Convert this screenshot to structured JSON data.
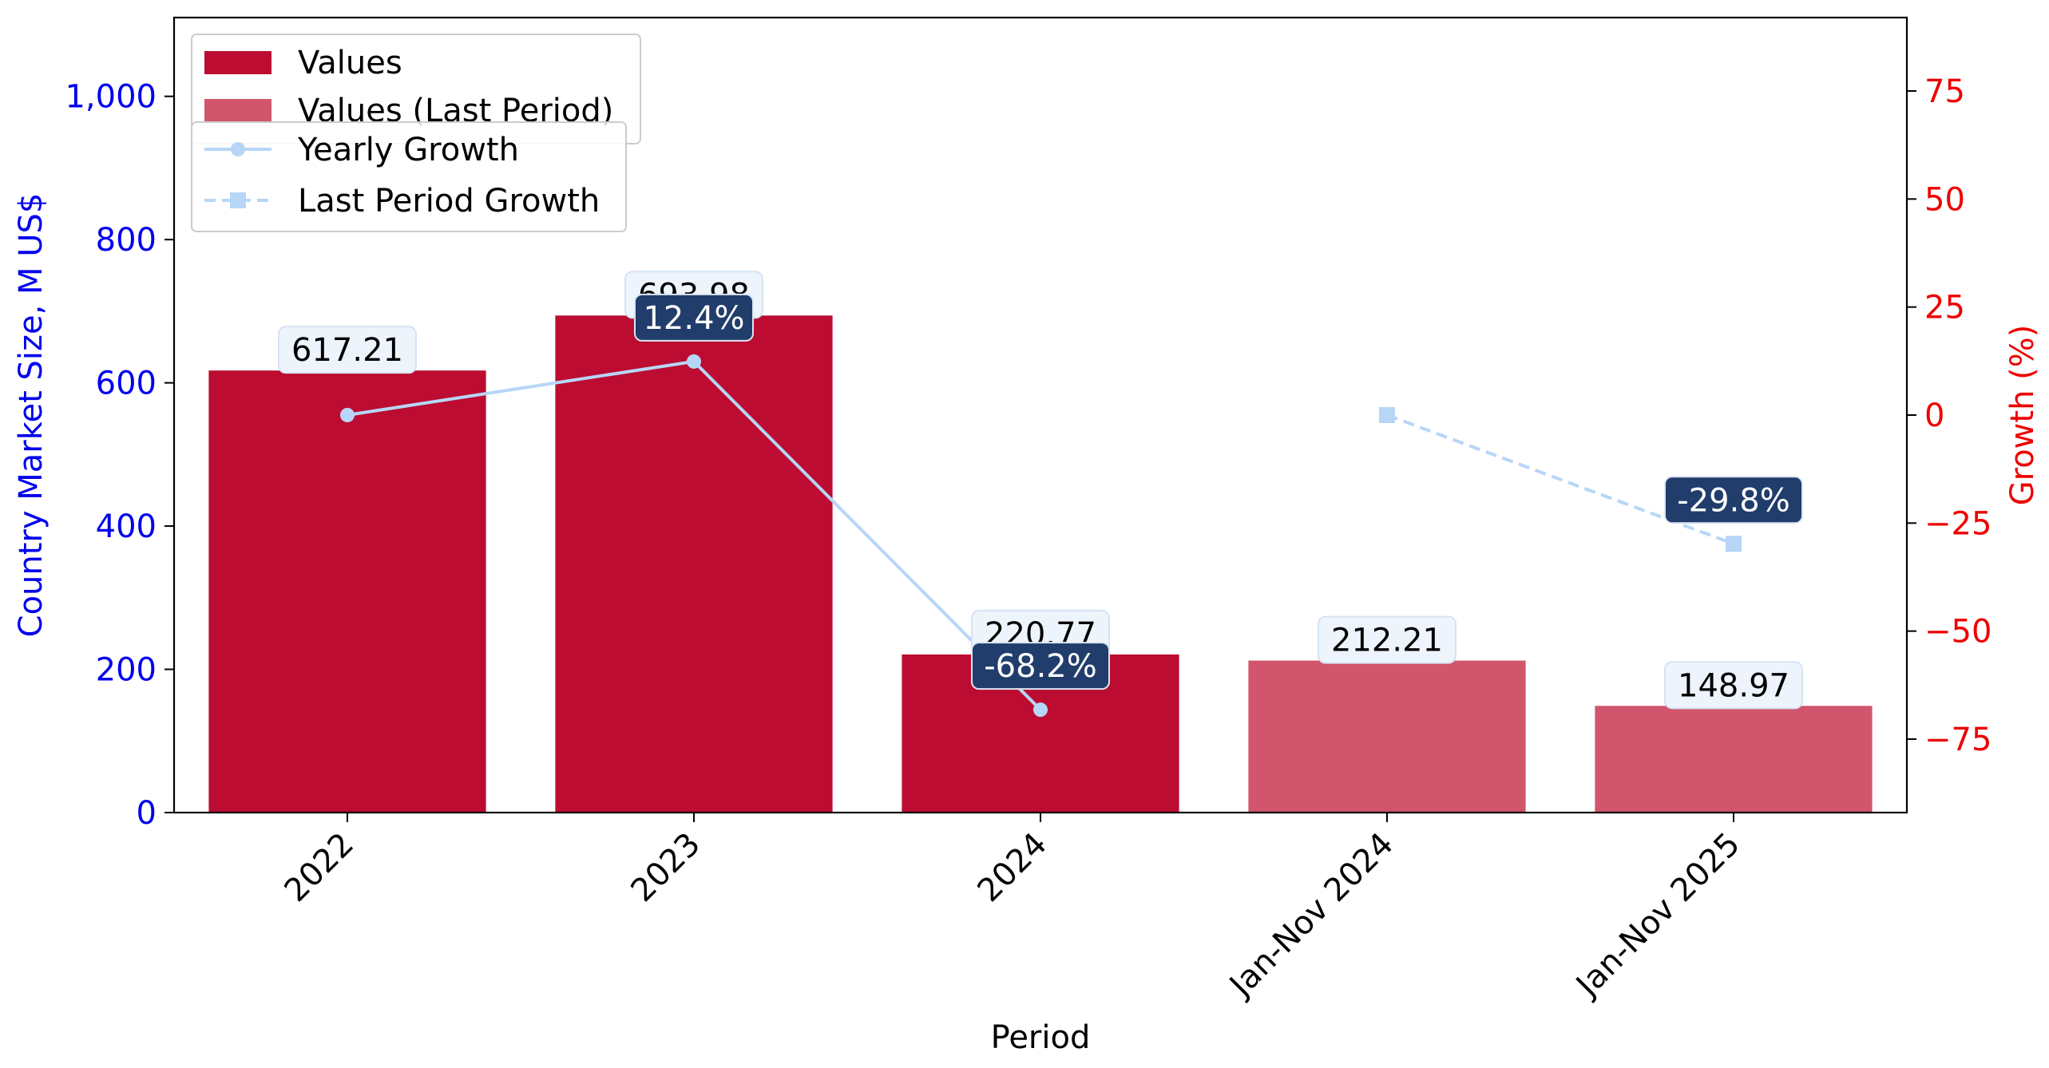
{
  "chart_data": {
    "type": "bar",
    "xlabel": "Period",
    "ylabel_left": "Country Market Size, M US$",
    "ylabel_right": "Growth (%)",
    "categories": [
      "2022",
      "2023",
      "2024",
      "Jan-Nov 2024",
      "Jan-Nov 2025"
    ],
    "ylim_left": [
      0,
      1110
    ],
    "ylim_right": [
      -92,
      92
    ],
    "yticks_left": [
      0,
      200,
      400,
      600,
      800,
      1000
    ],
    "ytick_labels_left": [
      "0",
      "200",
      "400",
      "600",
      "800",
      "1,000"
    ],
    "yticks_right": [
      -75,
      -50,
      -25,
      0,
      25,
      50,
      75
    ],
    "ytick_labels_right": [
      "−75",
      "−50",
      "−25",
      "0",
      "25",
      "50",
      "75"
    ],
    "grid": false,
    "legend_position": "top-left",
    "bars": [
      {
        "category": "2022",
        "value": 617.21,
        "label": "617.21",
        "series": "Values"
      },
      {
        "category": "2023",
        "value": 693.98,
        "label": "693.98",
        "series": "Values"
      },
      {
        "category": "2024",
        "value": 220.77,
        "label": "220.77",
        "series": "Values"
      },
      {
        "category": "Jan-Nov 2024",
        "value": 212.21,
        "label": "212.21",
        "series": "Values (Last Period)"
      },
      {
        "category": "Jan-Nov 2025",
        "value": 148.97,
        "label": "148.97",
        "series": "Values (Last Period)"
      }
    ],
    "lines": [
      {
        "name": "Yearly Growth",
        "style": "solid",
        "marker": "circle",
        "points": [
          {
            "category": "2022",
            "value": 0,
            "label": ""
          },
          {
            "category": "2023",
            "value": 12.4,
            "label": "12.4%"
          },
          {
            "category": "2024",
            "value": -68.2,
            "label": "-68.2%"
          }
        ]
      },
      {
        "name": "Last Period Growth",
        "style": "dashed",
        "marker": "square",
        "points": [
          {
            "category": "Jan-Nov 2024",
            "value": 0,
            "label": ""
          },
          {
            "category": "Jan-Nov 2025",
            "value": -29.8,
            "label": "-29.8%"
          }
        ]
      }
    ],
    "legend": [
      {
        "name": "Values",
        "kind": "bar",
        "color": "#bc0c31"
      },
      {
        "name": "Values (Last Period)",
        "kind": "bar",
        "color": "#d1556c"
      },
      {
        "name": "Yearly Growth",
        "kind": "line-solid",
        "color": "#b7d6f7"
      },
      {
        "name": "Last Period Growth",
        "kind": "line-dashed",
        "color": "#b7d6f7"
      }
    ],
    "colors": {
      "values": "#bc0c31",
      "values_last": "#d1556c",
      "growth_line": "#b7d6f7",
      "left_axis": "#0000ee",
      "right_axis": "#ee0000",
      "value_label_bg": "#eef4fb",
      "growth_label_bg": "#213d6c"
    }
  }
}
